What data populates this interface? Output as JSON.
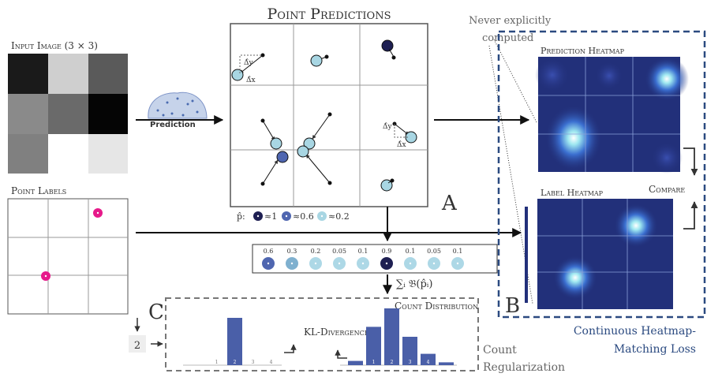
{
  "point_predictions": {
    "title": "Point Predictions",
    "delta_y": "Δ̂y",
    "delta_x": "Δ̂x"
  },
  "input_image": {
    "title": "Input Image (3 × 3)"
  },
  "network": {
    "label": "Prediction"
  },
  "point_labels": {
    "title": "Point Labels",
    "count": "2"
  },
  "legend": {
    "symbol": "p̂:",
    "entries": [
      "≈1",
      "≈0.6",
      "≈0.2"
    ]
  },
  "probabilities": {
    "values": [
      "0.6",
      "0.3",
      "0.2",
      "0.05",
      "0.1",
      "0.9",
      "0.1",
      "0.05",
      "0.1"
    ]
  },
  "sum_label": "∑ᵢ 𝔅(p̂ᵢ)",
  "panel_labels": {
    "a": "A",
    "b": "B",
    "c": "C"
  },
  "note": [
    "Never explicitly",
    "computed"
  ],
  "heatmaps": {
    "prediction": "Prediction Heatmap",
    "label": "Label Heatmap",
    "compare": "Compare"
  },
  "heatmap_loss": [
    "Continuous Heatmap-",
    "Matching Loss"
  ],
  "count_regularization": {
    "lines": [
      "Count",
      "Regularization"
    ],
    "kl": "KL-Divergence",
    "distribution_title": "Count Distribution",
    "target_ticks": [
      "1",
      "2",
      "3",
      "4"
    ],
    "target_values": [
      0,
      0,
      1,
      0,
      0
    ],
    "predicted_ticks": [
      "1",
      "2",
      "3",
      "4"
    ],
    "predicted_values": [
      0.03,
      0.27,
      0.4,
      0.2,
      0.08,
      0.02
    ]
  }
}
